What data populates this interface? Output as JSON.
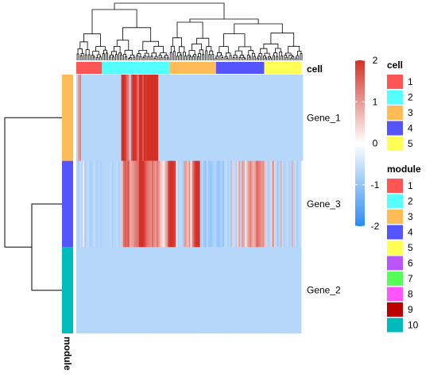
{
  "chart_data": {
    "type": "heatmap",
    "rows": [
      "Gene_1",
      "Gene_3",
      "Gene_2"
    ],
    "row_modules": [
      "3",
      "4",
      "10"
    ],
    "column_annotation_label": "cell",
    "row_annotation_label": "module",
    "column_groups": [
      {
        "name": "1",
        "n_cells": 16
      },
      {
        "name": "2",
        "n_cells": 42
      },
      {
        "name": "3",
        "n_cells": 29
      },
      {
        "name": "4",
        "n_cells": 30
      },
      {
        "name": "5",
        "n_cells": 23
      }
    ],
    "color_scale": {
      "title": "",
      "min": -2,
      "max": 2,
      "ticks": [
        "2",
        "1",
        "0",
        "-1",
        "-2"
      ],
      "low_color": "#2c8cf2",
      "mid_color": "#ffffff",
      "high_color": "#d33027"
    },
    "legend_cell": {
      "title": "cell",
      "entries": [
        {
          "label": "1",
          "color": "#ff5555"
        },
        {
          "label": "2",
          "color": "#55ffff"
        },
        {
          "label": "3",
          "color": "#ffbb55"
        },
        {
          "label": "4",
          "color": "#5555ff"
        },
        {
          "label": "5",
          "color": "#ffff55"
        }
      ]
    },
    "legend_module": {
      "title": "module",
      "entries": [
        {
          "label": "1",
          "color": "#ff5555"
        },
        {
          "label": "2",
          "color": "#55ffff"
        },
        {
          "label": "3",
          "color": "#ffbb55"
        },
        {
          "label": "4",
          "color": "#5555ff"
        },
        {
          "label": "5",
          "color": "#ffff55"
        },
        {
          "label": "6",
          "color": "#bb55ff"
        },
        {
          "label": "7",
          "color": "#55ff55"
        },
        {
          "label": "8",
          "color": "#ff55ff"
        },
        {
          "label": "9",
          "color": "#bb0000"
        },
        {
          "label": "10",
          "color": "#00bbbb"
        }
      ]
    },
    "values": [
      [
        -0.7,
        1.0,
        1.2,
        -0.7,
        -0.7,
        -0.7,
        -0.7,
        -0.7,
        -0.7,
        -0.7,
        -0.7,
        -0.7,
        -0.7,
        -0.7,
        -0.7,
        -0.7,
        -0.7,
        -0.7,
        -0.7,
        -0.7,
        -0.7,
        -0.7,
        -0.7,
        -0.7,
        -0.7,
        -0.7,
        -0.7,
        -0.7,
        2.0,
        2.0,
        1.9,
        1.5,
        1.2,
        -0.7,
        1.6,
        2.0,
        2.0,
        1.8,
        1.3,
        2.0,
        2.0,
        1.6,
        2.0,
        1.9,
        2.0,
        2.0,
        2.0,
        2.0,
        2.0,
        2.0,
        2.0,
        -0.7,
        -0.7,
        -0.7,
        -0.7,
        -0.7,
        -0.7,
        -0.7,
        -0.7,
        -0.7,
        -0.7,
        -0.7,
        -0.7,
        -0.7,
        -0.7,
        -0.7,
        -0.7,
        -0.7,
        -0.7,
        -0.7,
        -0.7,
        -0.7,
        -0.7,
        -0.7,
        -0.7,
        -0.7,
        -0.7,
        -0.7,
        -0.7,
        -0.7,
        -0.7,
        -0.7,
        -0.7,
        -0.7,
        -0.7,
        -0.7,
        -0.7,
        -0.7,
        -0.7,
        -0.7,
        -0.7,
        -0.7,
        -0.7,
        -0.7,
        -0.7,
        -0.7,
        -0.7,
        -0.7,
        -0.7,
        -0.7,
        -0.7,
        -0.7,
        -0.7,
        -0.7,
        -0.7,
        -0.7,
        -0.7,
        -0.7,
        -0.7,
        -0.7,
        -0.7,
        -0.7,
        -0.7,
        -0.7,
        -0.7,
        -0.7,
        -0.7,
        -0.7,
        -0.7,
        -0.7,
        -0.7,
        -0.7,
        -0.7,
        -0.7,
        -0.7,
        -0.7,
        -0.7,
        -0.7,
        -0.7,
        -0.7,
        -0.7,
        -0.7,
        -0.7,
        -0.7,
        -0.7,
        -0.7,
        -0.7,
        -0.7,
        -0.7,
        -0.7,
        -0.7
      ],
      [
        -0.7,
        -0.8,
        -0.6,
        -0.7,
        0.3,
        -0.8,
        -0.7,
        -0.6,
        -0.8,
        -0.8,
        -0.7,
        -0.6,
        -0.8,
        -0.7,
        -0.7,
        -0.8,
        -0.7,
        -0.7,
        -0.7,
        -0.7,
        -0.7,
        -0.6,
        -0.8,
        -0.7,
        -0.7,
        -0.6,
        -0.8,
        -0.7,
        0.6,
        1.3,
        1.6,
        1.4,
        1.7,
        0.8,
        0.9,
        1.0,
        1.2,
        1.3,
        1.4,
        2.0,
        2.0,
        2.0,
        1.8,
        1.5,
        1.3,
        1.2,
        1.1,
        1.4,
        1.1,
        1.0,
        1.3,
        1.0,
        0.6,
        0.4,
        0.2,
        0.7,
        1.0,
        1.8,
        2.0,
        2.0,
        1.9,
        1.8,
        -0.2,
        -0.8,
        -0.6,
        -0.7,
        -0.8,
        1.0,
        0.9,
        0.6,
        1.1,
        0.2,
        1.2,
        1.7,
        2.0,
        2.0,
        2.0,
        -0.8,
        -0.7,
        -0.9,
        -1.0,
        -0.7,
        -0.9,
        -1.0,
        -0.9,
        -0.8,
        -0.7,
        -0.9,
        -1.0,
        -0.9,
        -0.8,
        -1.0,
        -0.7,
        -0.6,
        -0.8,
        -0.7,
        -0.9,
        0.5,
        -0.6,
        -0.8,
        0.4,
        0.9,
        -0.7,
        1.0,
        0.8,
        -0.3,
        0.7,
        1.0,
        1.2,
        0.9,
        0.7,
        1.0,
        1.5,
        1.3,
        1.2,
        1.0,
        1.1,
        0.6,
        -0.6,
        -0.8,
        -0.7,
        0.4,
        1.2,
        -0.5,
        -0.7,
        -0.9,
        -0.7,
        0.8,
        -0.6,
        -0.8,
        -0.7,
        -0.6,
        -0.8,
        -0.7,
        0.8,
        -0.7,
        -0.6,
        -0.8,
        -0.7,
        -0.6
      ],
      [
        -0.7,
        -0.7,
        -0.7,
        -0.7,
        -0.7,
        -0.7,
        -0.7,
        -0.7,
        -0.7,
        -0.7,
        -0.7,
        -0.7,
        -0.7,
        -0.7,
        -0.7,
        -0.7,
        -0.7,
        -0.7,
        -0.7,
        -0.7,
        -0.7,
        -0.7,
        -0.7,
        -0.7,
        -0.7,
        -0.7,
        -0.7,
        -0.7,
        -0.7,
        -0.7,
        -0.7,
        -0.7,
        -0.7,
        -0.7,
        -0.7,
        -0.7,
        -0.7,
        -0.7,
        -0.7,
        -0.7,
        -0.7,
        -0.7,
        -0.7,
        -0.7,
        -0.7,
        -0.7,
        -0.7,
        -0.7,
        -0.7,
        -0.7,
        -0.7,
        -0.7,
        -0.7,
        -0.7,
        -0.7,
        -0.7,
        -0.7,
        -0.7,
        -0.7,
        -0.7,
        -0.7,
        -0.7,
        -0.7,
        -0.7,
        -0.7,
        -0.7,
        -0.7,
        -0.7,
        -0.7,
        -0.7,
        -0.7,
        -0.7,
        -0.7,
        -0.7,
        -0.7,
        -0.7,
        -0.7,
        -0.7,
        -0.7,
        -0.7,
        -0.7,
        -0.7,
        -0.7,
        -0.7,
        -0.7,
        -0.7,
        -0.7,
        -0.7,
        -0.7,
        -0.7,
        -0.7,
        -0.7,
        -0.7,
        -0.7,
        -0.7,
        -0.7,
        -0.7,
        -0.7,
        -0.7,
        -0.7,
        -0.7,
        -0.7,
        -0.7,
        -0.7,
        -0.7,
        -0.7,
        -0.7,
        -0.7,
        -0.7,
        -0.7,
        -0.7,
        -0.7,
        -0.7,
        -0.7,
        -0.7,
        -0.7,
        -0.7,
        -0.7,
        -0.7,
        -0.7,
        -0.7,
        -0.7,
        -0.7,
        -0.7,
        -0.7,
        -0.7,
        -0.7,
        -0.7,
        -0.7,
        -0.7,
        -0.7,
        -0.7,
        -0.7,
        -0.7,
        -0.7,
        -0.7,
        -0.7,
        -0.7,
        -0.7,
        -0.7
      ]
    ]
  }
}
